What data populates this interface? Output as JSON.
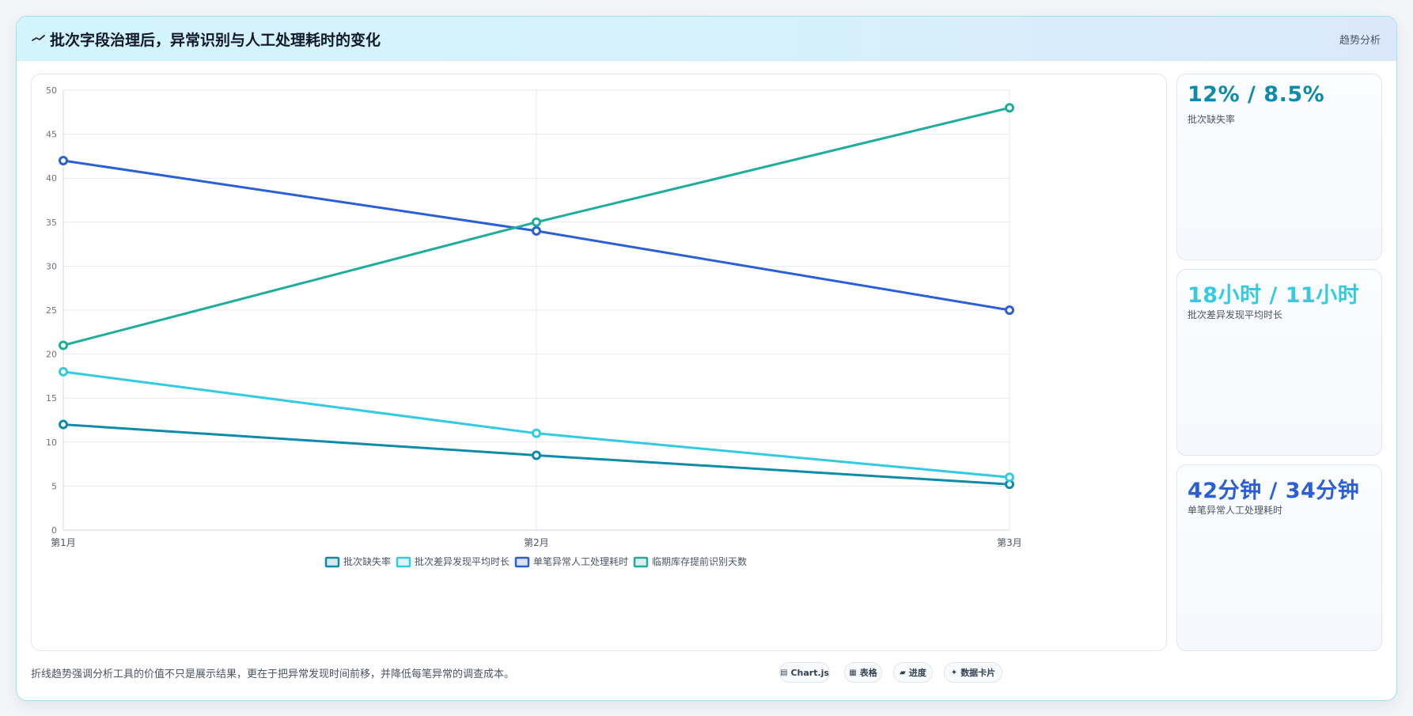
{
  "header": {
    "icon": "trend-line-icon",
    "title": "批次字段治理后，异常识别与人工处理耗时的变化",
    "tag": "趋势分析"
  },
  "chart_data": {
    "type": "line",
    "categories": [
      "第1月",
      "第2月",
      "第3月"
    ],
    "ylim": [
      0,
      50
    ],
    "yticks": [
      0,
      5,
      10,
      15,
      20,
      25,
      30,
      35,
      40,
      45,
      50
    ],
    "grid": true,
    "legend_position": "bottom",
    "series": [
      {
        "name": "批次缺失率",
        "values": [
          12,
          8.5,
          5.2
        ],
        "color": "#0e8ba8"
      },
      {
        "name": "批次差异发现平均时长",
        "values": [
          18,
          11,
          6
        ],
        "color": "#33cbe2"
      },
      {
        "name": "单笔异常人工处理耗时",
        "values": [
          42,
          34,
          25
        ],
        "color": "#2a5fd6"
      },
      {
        "name": "临期库存提前识别天数",
        "values": [
          21,
          35,
          48
        ],
        "color": "#1eac9c"
      }
    ]
  },
  "kpis": [
    {
      "value": "12% / 8.5%",
      "label": "批次缺失率",
      "color": "#0e8ba8"
    },
    {
      "value": "18小时 / 11小时",
      "label": "批次差异发现平均时长",
      "color": "#33cbe2"
    },
    {
      "value": "42分钟 / 34分钟",
      "label": "单笔异常人工处理耗时",
      "color": "#2a5fd6"
    }
  ],
  "footer": {
    "note": "折线趋势强调分析工具的价值不只是展示结果，更在于把异常发现时间前移，并降低每笔异常的调查成本。",
    "chips": [
      {
        "icon": "▤",
        "icon_name": "chart-icon",
        "label": "Chart.js"
      },
      {
        "icon": "▦",
        "icon_name": "table-icon",
        "label": "表格"
      },
      {
        "icon": "▰",
        "icon_name": "progress-icon",
        "label": "进度"
      },
      {
        "icon": "✦",
        "icon_name": "sparkle-icon",
        "label": "数据卡片"
      }
    ]
  }
}
